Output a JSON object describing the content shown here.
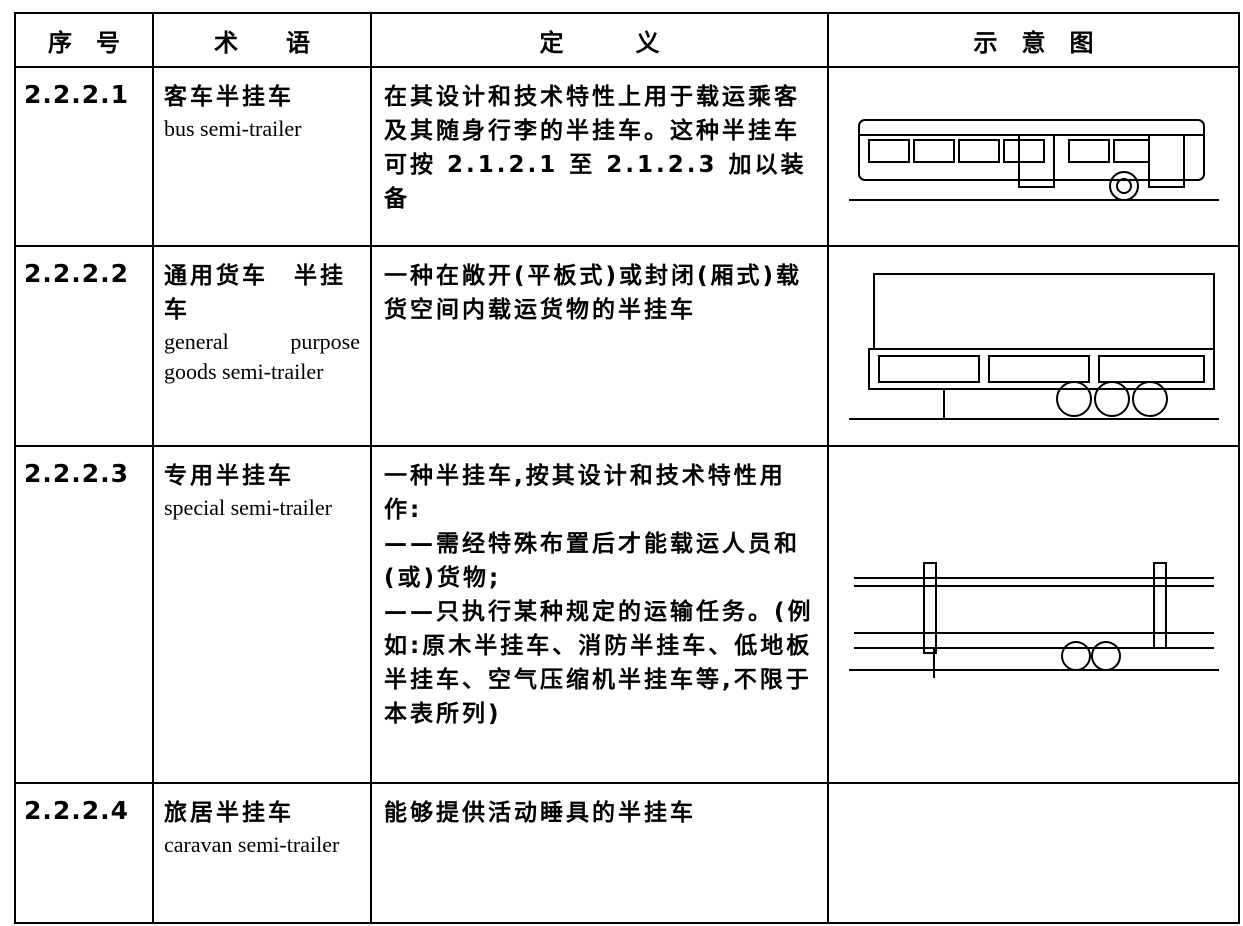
{
  "table": {
    "header": [
      "序　号",
      "术　　语",
      "定　　　义",
      "示　意　图"
    ],
    "rows": [
      {
        "number": "2.2.2.1",
        "term_zh": "客车半挂车",
        "term_en": "bus semi-trailer",
        "definition": [
          "在其设计和技术特性上用于载运乘客及其随身行李的半挂车。这种半挂车可按 2.1.2.1 至 2.1.2.3 加以装备"
        ]
      },
      {
        "number": "2.2.2.2",
        "term_zh": "通用货车　半挂车",
        "term_en": "general purpose goods semi-trailer",
        "definition": [
          "一种在敞开(平板式)或封闭(厢式)载货空间内载运货物的半挂车"
        ]
      },
      {
        "number": "2.2.2.3",
        "term_zh": "专用半挂车",
        "term_en": "special semi-trailer",
        "definition": [
          "一种半挂车,按其设计和技术特性用作:",
          "——需经特殊布置后才能载运人员和(或)货物;",
          "——只执行某种规定的运输任务。(例如:原木半挂车、消防半挂车、低地板半挂车、空气压缩机半挂车等,不限于本表所列)"
        ]
      },
      {
        "number": "2.2.2.4",
        "term_zh": "旅居半挂车",
        "term_en": "caravan semi-trailer",
        "definition": [
          "能够提供活动睡具的半挂车"
        ]
      }
    ]
  }
}
